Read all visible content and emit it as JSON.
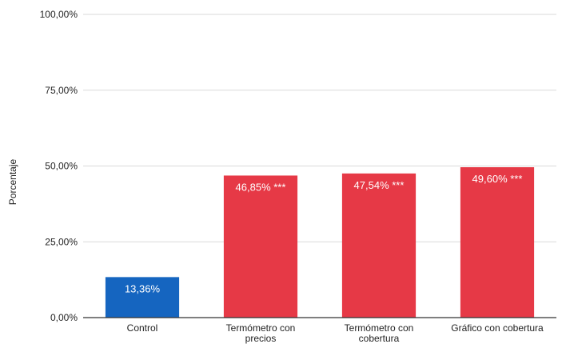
{
  "chart_data": {
    "type": "bar",
    "title": "",
    "xlabel": "",
    "ylabel": "Porcentaje",
    "ylim": [
      0,
      100
    ],
    "yticks": [
      "0,00%",
      "25,00%",
      "50,00%",
      "75,00%",
      "100,00%"
    ],
    "ytick_values": [
      0,
      25,
      50,
      75,
      100
    ],
    "grid": true,
    "legend": "none",
    "categories": [
      [
        "Control"
      ],
      [
        "Termómetro con",
        "precios"
      ],
      [
        "Termómetro con",
        "cobertura"
      ],
      [
        "Gráfico con cobertura"
      ]
    ],
    "values": [
      13.36,
      46.85,
      47.54,
      49.6
    ],
    "data_labels": [
      "13,36%",
      "46,85% ***",
      "47,54% ***",
      "49,60% ***"
    ],
    "colors": [
      "#1565c0",
      "#e63946",
      "#e63946",
      "#e63946"
    ]
  }
}
